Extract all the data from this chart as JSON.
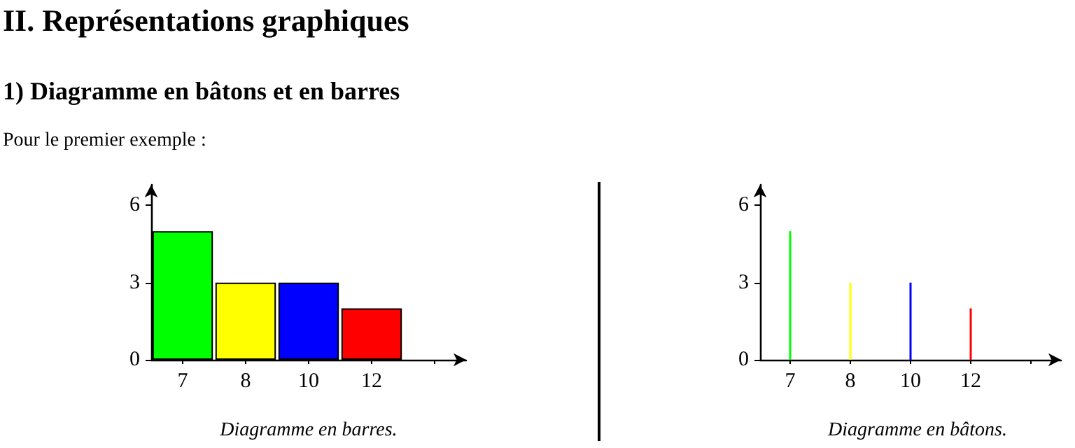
{
  "chart_data": [
    {
      "type": "bar",
      "title": "II. Représentations graphiques",
      "subtitle": "1) Diagramme en bâtons et en barres",
      "annotations": [
        "Pour le premier exemple :"
      ],
      "xlabel": "Diagramme en barres.",
      "categories": [
        "7",
        "8",
        "10",
        "12",
        null
      ],
      "values": [
        5,
        3,
        3,
        2,
        null
      ],
      "colors": [
        "#00ff00",
        "#ffff00",
        "#0000ff",
        "#ff0000",
        null
      ],
      "ylim": [
        0,
        6.8
      ],
      "yticks": [
        0,
        3,
        6
      ],
      "grid": false
    },
    {
      "type": "bar",
      "xlabel": "Diagramme en bâtons.",
      "categories": [
        "7",
        "8",
        "10",
        "12",
        null
      ],
      "values": [
        5,
        3,
        3,
        2,
        null
      ],
      "colors": [
        "#00ff00",
        "#ffff00",
        "#0000ff",
        "#ff0000",
        null
      ],
      "ylim": [
        0,
        6.8
      ],
      "yticks": [
        0,
        3,
        6
      ],
      "grid": false
    }
  ]
}
